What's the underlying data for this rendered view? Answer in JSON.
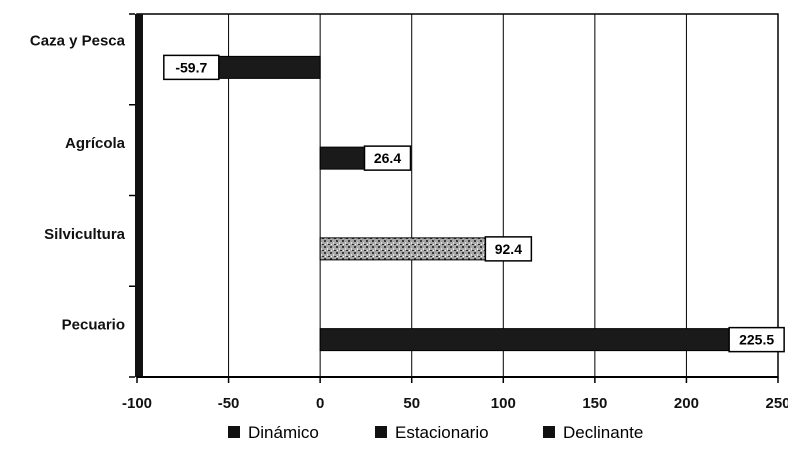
{
  "chart_data": {
    "type": "bar",
    "orientation": "horizontal",
    "categories": [
      "Caza y Pesca",
      "Agrícola",
      "Silvicultura",
      "Pecuario"
    ],
    "values": [
      -59.7,
      26.4,
      92.4,
      225.5
    ],
    "data_labels": [
      "-59.7",
      "26.4",
      "92.4",
      "225.5"
    ],
    "xlim": [
      -100,
      250
    ],
    "xticks": [
      -100,
      -50,
      0,
      50,
      100,
      150,
      200,
      250
    ],
    "xtick_labels": [
      "-100",
      "-50",
      "0",
      "50",
      "100",
      "150",
      "200",
      "250"
    ],
    "grid": "vertical",
    "legend_position": "bottom",
    "legend": [
      "Dinámico",
      "Estacionario",
      "Declinante"
    ],
    "bar_styles": [
      "solid-dark",
      "solid-dark",
      "speckled-gray",
      "solid-dark"
    ],
    "colors": {
      "bar": "#1a1a1a",
      "speckle": "#9a9a9a",
      "grid": "#000000",
      "legend_swatch": "#111111"
    }
  }
}
